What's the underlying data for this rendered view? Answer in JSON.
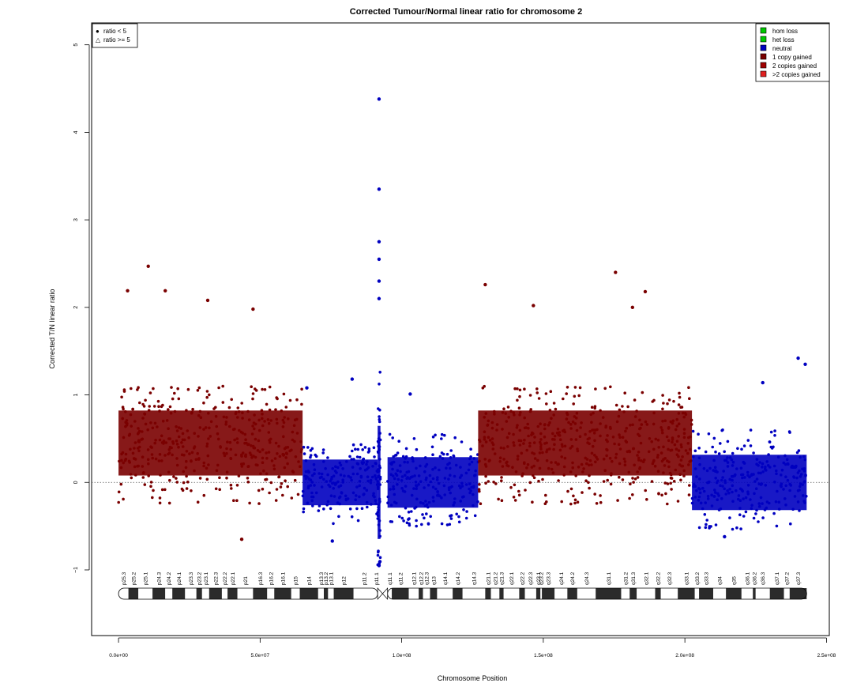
{
  "chart_data": {
    "type": "scatter",
    "title": "Corrected Tumour/Normal linear ratio for chromosome  2",
    "xlabel": "Chromosome Position",
    "ylabel": "Corrected T/N linear ratio",
    "xlim": [
      -9500000,
      251000000
    ],
    "ylim": [
      -1.75,
      5.25
    ],
    "x_ticks": [
      0,
      50000000,
      100000000,
      150000000,
      200000000,
      250000000
    ],
    "x_tick_labels": [
      "0.0e+00",
      "5.0e+07",
      "1.0e+08",
      "1.5e+08",
      "2.0e+08",
      "2.5e+08"
    ],
    "y_ticks": [
      -1,
      0,
      1,
      2,
      3,
      4,
      5
    ],
    "y_tick_labels": [
      "−1",
      "0",
      "1",
      "2",
      "3",
      "4",
      "5"
    ],
    "reference_line_y": 0,
    "grid": false,
    "shape_legend": {
      "placement": "top-left",
      "entries": [
        {
          "symbol": "●",
          "label": "ratio < 5"
        },
        {
          "symbol": "△",
          "label": "ratio >= 5"
        }
      ]
    },
    "legend": {
      "placement": "top-right",
      "entries": [
        {
          "label": "hom loss",
          "color": "#00c800"
        },
        {
          "label": "het loss",
          "color": "#00c800"
        },
        {
          "label": "neutral",
          "color": "#0000c0"
        },
        {
          "label": "1 copy gained",
          "color": "#7a0000"
        },
        {
          "label": "2 copies gained",
          "color": "#a00000"
        },
        {
          "label": ">2 copies gained",
          "color": "#e02020"
        }
      ]
    },
    "series": [
      {
        "name": "1 copy gained",
        "color": "#7a0000",
        "x": [
          200000,
          10000000,
          20000000,
          30000000,
          40000000,
          50000000,
          60000000,
          64000000
        ],
        "x_range": [
          0,
          65000000
        ],
        "center": 0.45,
        "low": -0.25,
        "high": 1.1
      },
      {
        "name": "neutral",
        "color": "#0000c0",
        "x": [
          65000000,
          75000000,
          85000000,
          91000000
        ],
        "x_range": [
          65000000,
          91500000
        ],
        "center": 0.0,
        "low": -0.5,
        "high": 0.45
      },
      {
        "name": "neutral",
        "color": "#0000c0",
        "x_range": [
          91500000,
          92500000
        ],
        "center": 0.0,
        "low": -0.95,
        "high": 1.4
      },
      {
        "name": "neutral",
        "color": "#0000c0",
        "x_range": [
          95000000,
          127000000
        ],
        "center": 0.0,
        "low": -0.5,
        "high": 0.55
      },
      {
        "name": "1 copy gained",
        "color": "#7a0000",
        "x_range": [
          127000000,
          202500000
        ],
        "center": 0.45,
        "low": -0.25,
        "high": 1.1
      },
      {
        "name": "neutral",
        "color": "#0000c0",
        "x_range": [
          202500000,
          243000000
        ],
        "center": 0.0,
        "low": -0.55,
        "high": 0.6
      }
    ],
    "notable_points": [
      {
        "x": 92000000,
        "y": 4.38,
        "series": "neutral"
      },
      {
        "x": 92000000,
        "y": 3.35,
        "series": "neutral"
      },
      {
        "x": 92000000,
        "y": 2.75,
        "series": "neutral"
      },
      {
        "x": 92000000,
        "y": 2.55,
        "series": "neutral"
      },
      {
        "x": 92000000,
        "y": 2.3,
        "series": "neutral"
      },
      {
        "x": 92000000,
        "y": 2.1,
        "series": "neutral"
      },
      {
        "x": 92000000,
        "y": -0.95,
        "series": "neutral"
      },
      {
        "x": 10500000,
        "y": 2.47,
        "series": "1 copy gained"
      },
      {
        "x": 3200000,
        "y": 2.19,
        "series": "1 copy gained"
      },
      {
        "x": 16500000,
        "y": 2.19,
        "series": "1 copy gained"
      },
      {
        "x": 31500000,
        "y": 2.08,
        "series": "1 copy gained"
      },
      {
        "x": 47500000,
        "y": 1.98,
        "series": "1 copy gained"
      },
      {
        "x": 129500000,
        "y": 2.26,
        "series": "1 copy gained"
      },
      {
        "x": 175500000,
        "y": 2.4,
        "series": "1 copy gained"
      },
      {
        "x": 186000000,
        "y": 2.18,
        "series": "1 copy gained"
      },
      {
        "x": 146500000,
        "y": 2.02,
        "series": "1 copy gained"
      },
      {
        "x": 181500000,
        "y": 2.0,
        "series": "1 copy gained"
      },
      {
        "x": 43500000,
        "y": -0.65,
        "series": "1 copy gained"
      },
      {
        "x": 66500000,
        "y": 1.08,
        "series": "neutral"
      },
      {
        "x": 82500000,
        "y": 1.18,
        "series": "neutral"
      },
      {
        "x": 103000000,
        "y": 1.01,
        "series": "neutral"
      },
      {
        "x": 240000000,
        "y": 1.42,
        "series": "neutral"
      },
      {
        "x": 242500000,
        "y": 1.35,
        "series": "neutral"
      },
      {
        "x": 227500000,
        "y": 1.14,
        "series": "neutral"
      },
      {
        "x": 214000000,
        "y": -0.62,
        "series": "neutral"
      },
      {
        "x": 75500000,
        "y": -0.67,
        "series": "neutral"
      }
    ],
    "ideogram": {
      "centromere_range": [
        91500000,
        95000000
      ],
      "bands": [
        {
          "label": "p25.3",
          "start": 0,
          "end": 3500000,
          "stain": "white"
        },
        {
          "label": "p25.2",
          "start": 3500000,
          "end": 7000000,
          "stain": "dark"
        },
        {
          "label": "p25.1",
          "start": 7000000,
          "end": 12000000,
          "stain": "white"
        },
        {
          "label": "p24.3",
          "start": 12000000,
          "end": 16500000,
          "stain": "dark"
        },
        {
          "label": "p24.2",
          "start": 16500000,
          "end": 19000000,
          "stain": "white"
        },
        {
          "label": "p24.1",
          "start": 19000000,
          "end": 23500000,
          "stain": "dark"
        },
        {
          "label": "p23.3",
          "start": 23500000,
          "end": 27500000,
          "stain": "white"
        },
        {
          "label": "p23.2",
          "start": 27500000,
          "end": 29500000,
          "stain": "dark"
        },
        {
          "label": "p23.1",
          "start": 29500000,
          "end": 32000000,
          "stain": "white"
        },
        {
          "label": "p22.3",
          "start": 32000000,
          "end": 36500000,
          "stain": "dark"
        },
        {
          "label": "p22.2",
          "start": 36500000,
          "end": 38500000,
          "stain": "white"
        },
        {
          "label": "p22.1",
          "start": 38500000,
          "end": 42000000,
          "stain": "dark"
        },
        {
          "label": "p21",
          "start": 42000000,
          "end": 47500000,
          "stain": "white"
        },
        {
          "label": "p16.3",
          "start": 47500000,
          "end": 52500000,
          "stain": "dark"
        },
        {
          "label": "p16.2",
          "start": 52500000,
          "end": 55000000,
          "stain": "white"
        },
        {
          "label": "p16.1",
          "start": 55000000,
          "end": 61000000,
          "stain": "dark"
        },
        {
          "label": "p15",
          "start": 61000000,
          "end": 64000000,
          "stain": "white"
        },
        {
          "label": "p14",
          "start": 64000000,
          "end": 70500000,
          "stain": "dark"
        },
        {
          "label": "p13.3",
          "start": 70500000,
          "end": 72500000,
          "stain": "white"
        },
        {
          "label": "p13.2",
          "start": 72500000,
          "end": 74000000,
          "stain": "dark"
        },
        {
          "label": "p13.1",
          "start": 74000000,
          "end": 76000000,
          "stain": "white"
        },
        {
          "label": "p12",
          "start": 76000000,
          "end": 83000000,
          "stain": "dark"
        },
        {
          "label": "p11.2",
          "start": 83000000,
          "end": 90500000,
          "stain": "white"
        },
        {
          "label": "p11.1",
          "start": 90500000,
          "end": 91500000,
          "stain": "white"
        },
        {
          "label": "q11.1",
          "start": 95000000,
          "end": 96500000,
          "stain": "white"
        },
        {
          "label": "q11.2",
          "start": 96500000,
          "end": 102500000,
          "stain": "dark"
        },
        {
          "label": "q12.1",
          "start": 102500000,
          "end": 106000000,
          "stain": "white"
        },
        {
          "label": "q12.2",
          "start": 106000000,
          "end": 107500000,
          "stain": "dark"
        },
        {
          "label": "q12.3",
          "start": 107500000,
          "end": 110000000,
          "stain": "white"
        },
        {
          "label": "q13",
          "start": 110000000,
          "end": 112500000,
          "stain": "dark"
        },
        {
          "label": "q14.1",
          "start": 112500000,
          "end": 118000000,
          "stain": "white"
        },
        {
          "label": "q14.2",
          "start": 118000000,
          "end": 121500000,
          "stain": "dark"
        },
        {
          "label": "q14.3",
          "start": 121500000,
          "end": 129500000,
          "stain": "white"
        },
        {
          "label": "q21.1",
          "start": 129500000,
          "end": 131500000,
          "stain": "dark"
        },
        {
          "label": "q21.2",
          "start": 131500000,
          "end": 134500000,
          "stain": "white"
        },
        {
          "label": "q21.3",
          "start": 134500000,
          "end": 136000000,
          "stain": "dark"
        },
        {
          "label": "q22.1",
          "start": 136000000,
          "end": 141500000,
          "stain": "white"
        },
        {
          "label": "q22.2",
          "start": 141500000,
          "end": 143500000,
          "stain": "dark"
        },
        {
          "label": "q22.3",
          "start": 143500000,
          "end": 147500000,
          "stain": "white"
        },
        {
          "label": "q23.1",
          "start": 147500000,
          "end": 149000000,
          "stain": "dark"
        },
        {
          "label": "q23.2",
          "start": 149000000,
          "end": 149500000,
          "stain": "white"
        },
        {
          "label": "q23.3",
          "start": 149500000,
          "end": 154000000,
          "stain": "dark"
        },
        {
          "label": "q24.1",
          "start": 154000000,
          "end": 158500000,
          "stain": "white"
        },
        {
          "label": "q24.2",
          "start": 158500000,
          "end": 162000000,
          "stain": "dark"
        },
        {
          "label": "q24.3",
          "start": 162000000,
          "end": 168500000,
          "stain": "white"
        },
        {
          "label": "q31.1",
          "start": 168500000,
          "end": 177500000,
          "stain": "dark"
        },
        {
          "label": "q31.2",
          "start": 177500000,
          "end": 180500000,
          "stain": "white"
        },
        {
          "label": "q31.3",
          "start": 180500000,
          "end": 183000000,
          "stain": "dark"
        },
        {
          "label": "q32.1",
          "start": 183000000,
          "end": 189500000,
          "stain": "white"
        },
        {
          "label": "q32.2",
          "start": 189500000,
          "end": 191500000,
          "stain": "dark"
        },
        {
          "label": "q32.3",
          "start": 191500000,
          "end": 197500000,
          "stain": "white"
        },
        {
          "label": "q33.1",
          "start": 197500000,
          "end": 203500000,
          "stain": "dark"
        },
        {
          "label": "q33.2",
          "start": 203500000,
          "end": 205000000,
          "stain": "white"
        },
        {
          "label": "q33.3",
          "start": 205000000,
          "end": 210000000,
          "stain": "dark"
        },
        {
          "label": "q34",
          "start": 210000000,
          "end": 214500000,
          "stain": "white"
        },
        {
          "label": "q35",
          "start": 214500000,
          "end": 220000000,
          "stain": "dark"
        },
        {
          "label": "q36.1",
          "start": 220000000,
          "end": 224000000,
          "stain": "white"
        },
        {
          "label": "q36.2",
          "start": 224000000,
          "end": 225000000,
          "stain": "dark"
        },
        {
          "label": "q36.3",
          "start": 225000000,
          "end": 230000000,
          "stain": "white"
        },
        {
          "label": "q37.1",
          "start": 230000000,
          "end": 235000000,
          "stain": "dark"
        },
        {
          "label": "q37.2",
          "start": 235000000,
          "end": 237000000,
          "stain": "white"
        },
        {
          "label": "q37.3",
          "start": 237000000,
          "end": 243000000,
          "stain": "dark"
        }
      ]
    }
  }
}
